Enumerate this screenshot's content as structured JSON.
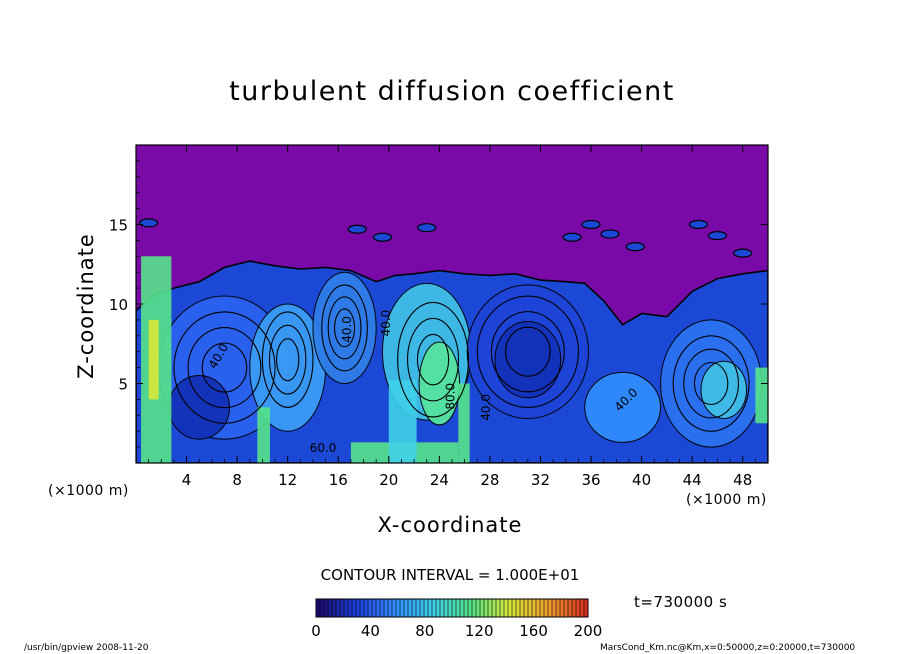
{
  "chart_data": {
    "type": "heatmap",
    "title": "turbulent diffusion coefficient",
    "xlabel": "X-coordinate",
    "ylabel": "Z-coordinate",
    "x_unit": "(×1000 m)",
    "y_unit": "(×1000 m)",
    "xlim": [
      0,
      50
    ],
    "ylim": [
      0,
      20
    ],
    "x_ticks": [
      4,
      8,
      12,
      16,
      20,
      24,
      28,
      32,
      36,
      40,
      44,
      48
    ],
    "y_ticks": [
      5,
      10,
      15
    ],
    "contour_interval_text": "CONTOUR INTERVAL = 1.000E+01",
    "time_text": "t=730000 s",
    "colorbar": {
      "min": 0,
      "max": 200,
      "ticks": [
        0,
        40,
        80,
        120,
        160,
        200
      ],
      "colors": [
        "#1a0a6e",
        "#1f3fd8",
        "#2f8cff",
        "#3fd0e8",
        "#56e38a",
        "#d6e83a",
        "#f0a030",
        "#d83020"
      ]
    },
    "contour_labels": [
      {
        "text": "40.0",
        "x": 6.8,
        "z": 6.6,
        "angle": 60
      },
      {
        "text": "40.0",
        "x": 17.0,
        "z": 8.4,
        "angle": 90
      },
      {
        "text": "40.0",
        "x": 20.1,
        "z": 8.8,
        "angle": 90
      },
      {
        "text": "60.0",
        "x": 14.8,
        "z": 0.7,
        "angle": 0
      },
      {
        "text": "80.0",
        "x": 25.2,
        "z": 4.2,
        "angle": 90
      },
      {
        "text": "40.0",
        "x": 28.0,
        "z": 3.5,
        "angle": 90
      },
      {
        "text": "40.0",
        "x": 39.0,
        "z": 3.8,
        "angle": 45
      }
    ],
    "background_value_region": {
      "z_from": 11,
      "z_to": 20,
      "value": 0
    }
  },
  "footer": {
    "left": "/usr/bin/gpview  2008-11-20",
    "right": "MarsCond_Km.nc@Km,x=0:50000,z=0:20000,t=730000"
  }
}
